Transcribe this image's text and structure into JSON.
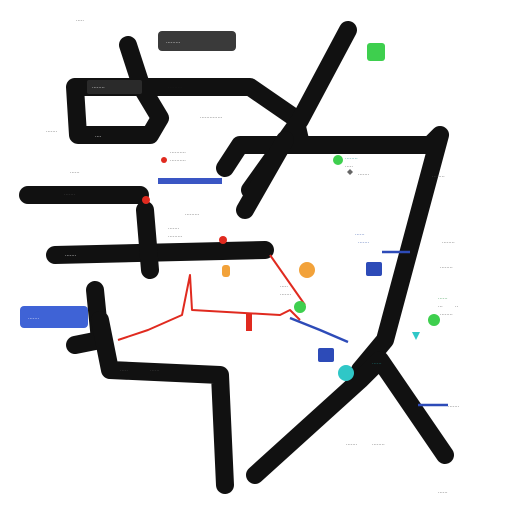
{
  "map": {
    "colors": {
      "road": "#111111",
      "red_route": "#e02a1f",
      "blue_route": "#2d4bb8",
      "green_marker": "#3ecf4e",
      "orange_marker": "#f2a23a",
      "teal_marker": "#2fc7c7",
      "pill_dark": "#3a3a3a",
      "pill_blue": "#3f63d6",
      "text": "#4a4a4a"
    },
    "labels": {
      "l01": "·····",
      "l02": "········",
      "l03": "·········",
      "l04": "··············",
      "l05": "·······",
      "l06": "····",
      "l07": "··········",
      "l08": "··········",
      "l09": "······",
      "l10": "·······",
      "l11": "·········",
      "l12": "·······",
      "l13": "·········",
      "l14": "·······",
      "l15": "········",
      "l16": "·····",
      "l17": "·······",
      "l18": "········",
      "l19": "······",
      "l20": "·······",
      "l21": "········",
      "l22": "········",
      "l23": "·····",
      "l24": "·······",
      "l25": "······",
      "l26": "···",
      "l27": "··",
      "l28": "········",
      "l29": "·····",
      "l30": "······",
      "l31": "······",
      "l32": "·······",
      "l33": "·······",
      "l34": "········",
      "l35": "······"
    },
    "pills": {
      "top": "·········",
      "left": "·······"
    }
  }
}
